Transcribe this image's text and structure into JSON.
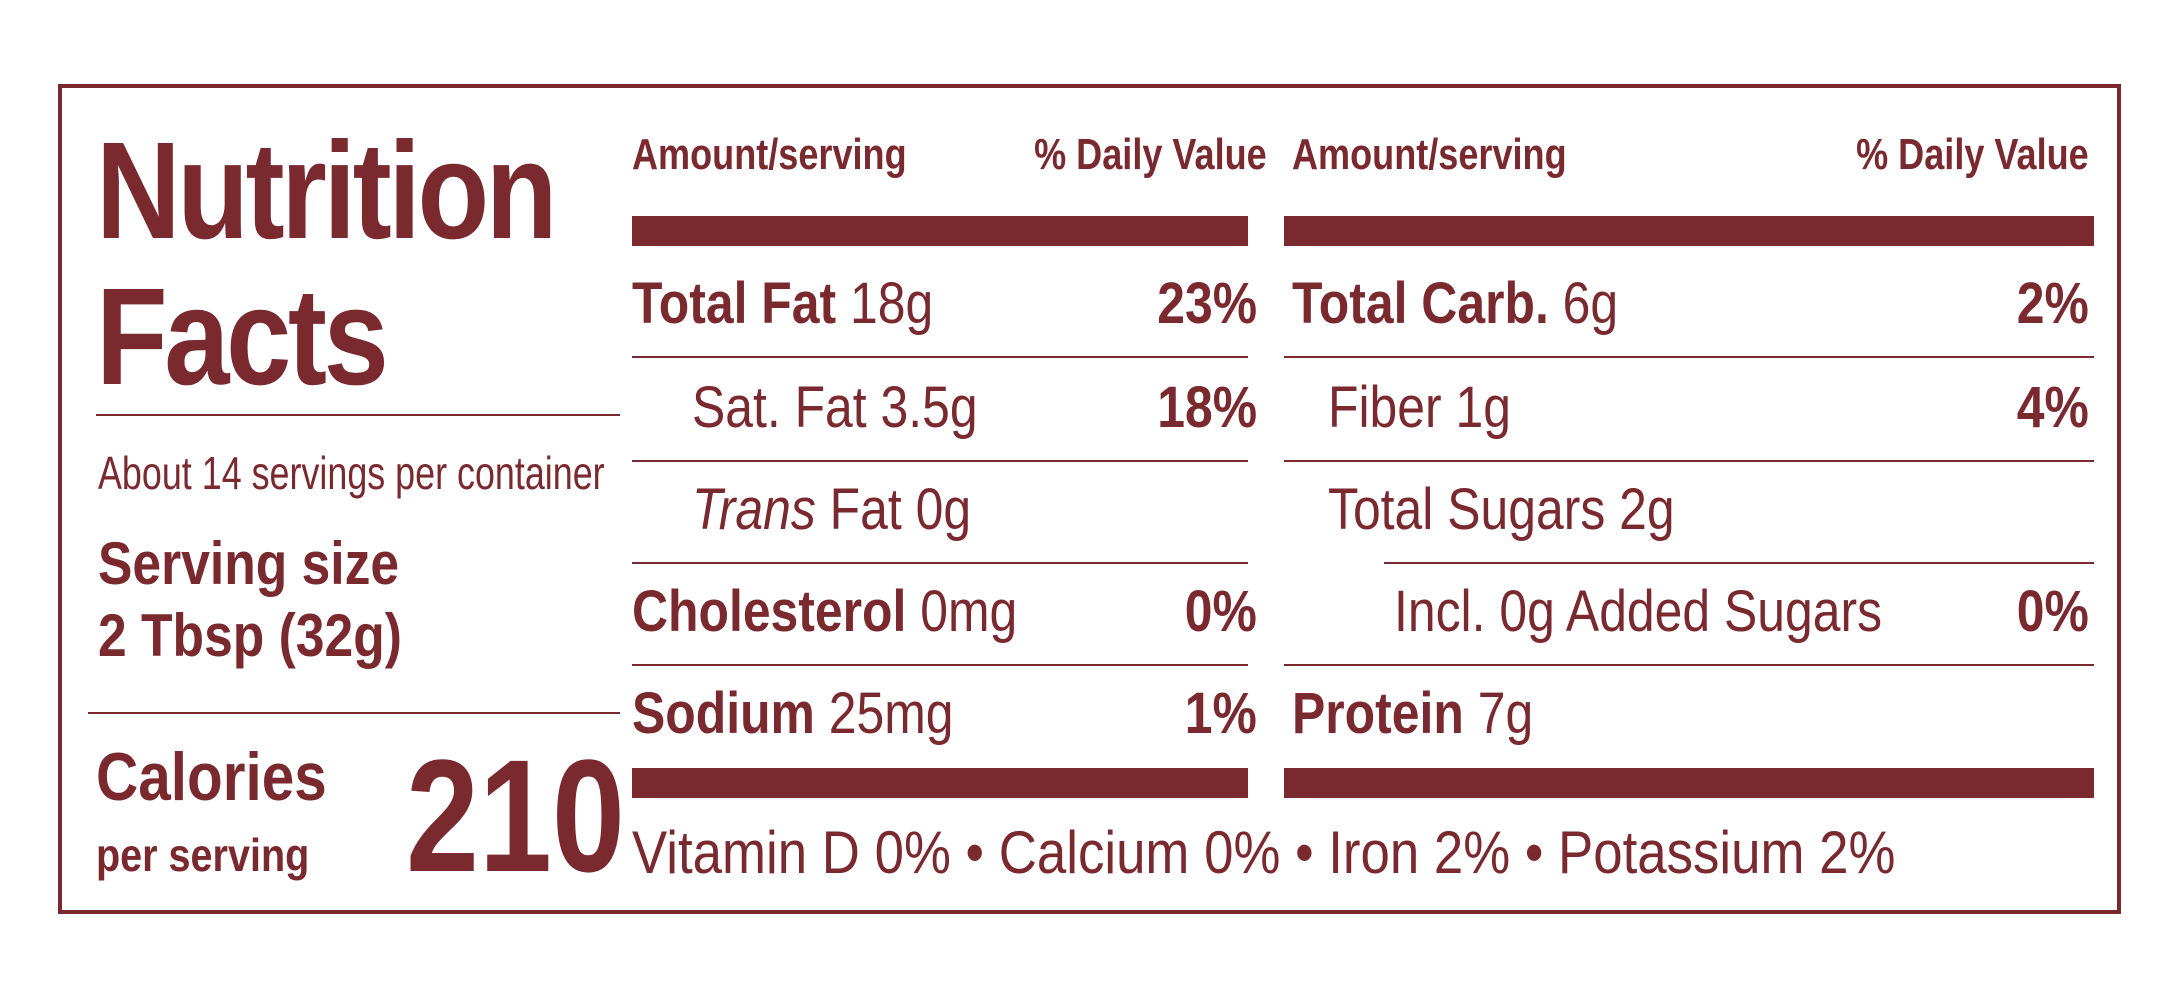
{
  "title_line1": "Nutrition",
  "title_line2": "Facts",
  "servings_per_container": "About 14 servings per container",
  "serving_size_label": "Serving size",
  "serving_size_value": "2 Tbsp (32g)",
  "calories_label": "Calories",
  "calories_sub": "per serving",
  "calories_value": "210",
  "headers": {
    "amount": "Amount/serving",
    "dv": "% Daily Value"
  },
  "left_rows": [
    {
      "name": "Total Fat",
      "amount": "18g",
      "dv": "23%"
    },
    {
      "name": "Sat. Fat",
      "amount": "3.5g",
      "dv": "18%"
    },
    {
      "name": "Trans",
      "name_suffix": "Fat",
      "amount": "0g",
      "dv": ""
    },
    {
      "name": "Cholesterol",
      "amount": "0mg",
      "dv": "0%"
    },
    {
      "name": "Sodium",
      "amount": "25mg",
      "dv": "1%"
    }
  ],
  "right_rows": [
    {
      "name": "Total Carb.",
      "amount": "6g",
      "dv": "2%"
    },
    {
      "name": "Fiber",
      "amount": "1g",
      "dv": "4%"
    },
    {
      "name": "Total Sugars",
      "amount": "2g",
      "dv": ""
    },
    {
      "name": "Incl. 0g Added Sugars",
      "amount": "",
      "dv": "0%"
    },
    {
      "name": "Protein",
      "amount": "7g",
      "dv": ""
    }
  ],
  "vitamins": "Vitamin D 0% • Calcium 0% • Iron 2% • Potassium 2%",
  "colors": {
    "ink": "#7a2a2f",
    "background": "#ffffff"
  }
}
